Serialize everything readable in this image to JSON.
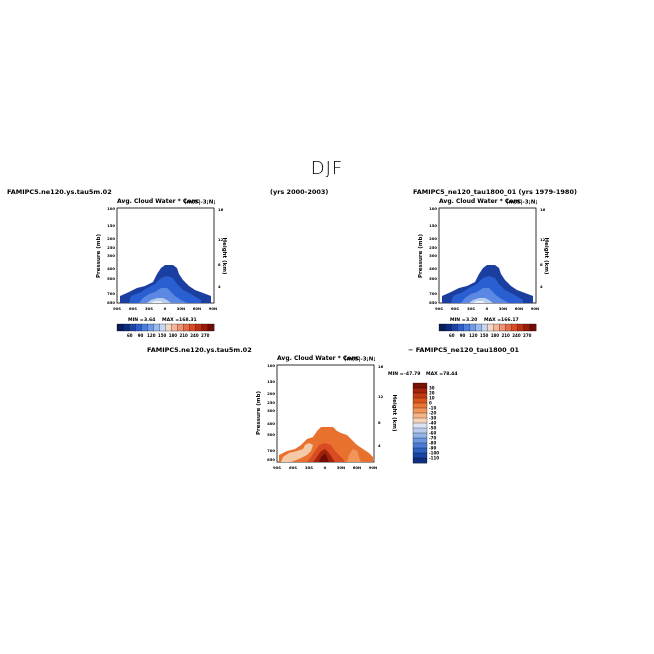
{
  "title": "DJF",
  "labels": {
    "case_left": "FAMIPC5.ne120.ys.tau5m.02",
    "years_left": "(yrs 2000-2003)",
    "case_right": "FAMIPC5_ne120_tau1800_01 (yrs 1979-1980)",
    "diff_left": "FAMIPC5.ne120.ys.tau5m.02",
    "diff_right": "− FAMIPC5_ne120_tau1800_01"
  },
  "panel_common": {
    "plot_title": "Avg. Cloud Water * Conc",
    "plot_subtitle": "(m;S|-3;N;",
    "y_left_label": "Pressure (mb)",
    "y_right_label": "Height (km)",
    "x_ticks": [
      "90S",
      "60S",
      "30S",
      "0",
      "30N",
      "60N",
      "90N"
    ],
    "y_ticks": [
      "100",
      "150",
      "200",
      "250",
      "300",
      "400",
      "500",
      "700",
      "850"
    ],
    "height_ticks": [
      "16",
      "12",
      "8",
      "4"
    ]
  },
  "panel_top_left": {
    "min_label": "MIN =",
    "min": "3.64",
    "max_label": "MAX =",
    "max": "168.31"
  },
  "panel_top_right": {
    "min_label": "MIN =",
    "min": "3.20",
    "max_label": "MAX =",
    "max": "166.17"
  },
  "panel_diff": {
    "min_label": "MIN =",
    "min": "-47.79",
    "max_label": "MAX =",
    "max": "78.44"
  },
  "colorbar_abs": {
    "colors": [
      "#081d58",
      "#0c2c84",
      "#1f44a0",
      "#2a5fd1",
      "#4a7fe0",
      "#6f9be8",
      "#9abbef",
      "#c4d6f3",
      "#f6d7c6",
      "#f6b59a",
      "#f2906f",
      "#e86b44",
      "#d94b23",
      "#bf2f12",
      "#9a1b0a",
      "#6e0e06"
    ],
    "labels": [
      "60",
      "90",
      "120",
      "150",
      "180",
      "210",
      "240",
      "270"
    ]
  },
  "colorbar_diff": {
    "colors": [
      "#7a1206",
      "#a3220c",
      "#c23a13",
      "#d9541c",
      "#e97534",
      "#f19659",
      "#f5b587",
      "#f7d3b8",
      "#dae4f4",
      "#b9cdee",
      "#93b3e7",
      "#6d97de",
      "#4a7cd4",
      "#2d60c2",
      "#1b45a5",
      "#0f2e80"
    ],
    "labels": [
      "30",
      "20",
      "10",
      "0",
      "-10",
      "-20",
      "-30",
      "-40",
      "-50",
      "-60",
      "-70",
      "-80",
      "-90",
      "-100",
      "-110"
    ]
  },
  "chart_data": [
    {
      "type": "heatmap",
      "title": "Avg. Cloud Water * Conc",
      "subtitle": "(m;S|-3;N;",
      "xlabel": "",
      "ylabel": "Pressure (mb)",
      "y2label": "Height (km)",
      "x": [
        "90S",
        "60S",
        "30S",
        "0",
        "30N",
        "60N",
        "90N"
      ],
      "y": [
        100,
        150,
        200,
        250,
        300,
        400,
        500,
        700,
        850
      ],
      "min": 3.64,
      "max": 168.31,
      "colorbar_levels": [
        60,
        90,
        120,
        150,
        180,
        210,
        240,
        270
      ]
    },
    {
      "type": "heatmap",
      "title": "Avg. Cloud Water * Conc",
      "subtitle": "(m;S|-3;N;",
      "xlabel": "",
      "ylabel": "Pressure (mb)",
      "y2label": "Height (km)",
      "x": [
        "90S",
        "60S",
        "30S",
        "0",
        "30N",
        "60N",
        "90N"
      ],
      "y": [
        100,
        150,
        200,
        250,
        300,
        400,
        500,
        700,
        850
      ],
      "min": 3.2,
      "max": 166.17,
      "colorbar_levels": [
        60,
        90,
        120,
        150,
        180,
        210,
        240,
        270
      ]
    },
    {
      "type": "heatmap",
      "title": "Avg. Cloud Water * Conc",
      "subtitle": "(m;S|-3;N;",
      "xlabel": "",
      "ylabel": "Pressure (mb)",
      "y2label": "Height (km)",
      "x": [
        "90S",
        "60S",
        "30S",
        "0",
        "30N",
        "60N",
        "90N"
      ],
      "y": [
        100,
        150,
        200,
        250,
        300,
        400,
        500,
        700,
        850
      ],
      "min": -47.79,
      "max": 78.44,
      "colorbar_levels": [
        30,
        20,
        10,
        0,
        -10,
        -20,
        -30,
        -40,
        -50,
        -60,
        -70,
        -80,
        -90,
        -100,
        -110
      ]
    }
  ]
}
